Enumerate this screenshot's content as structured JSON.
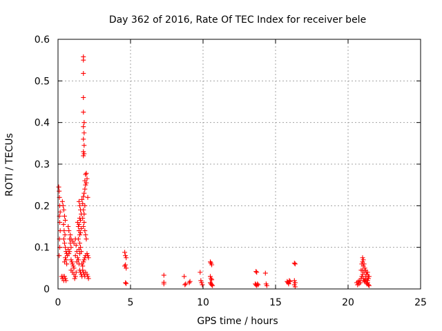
{
  "chart_data": {
    "type": "scatter",
    "title": "Day 362 of 2016, Rate Of TEC Index for receiver bele",
    "xlabel": "GPS time / hours",
    "ylabel": "ROTI / TECUs",
    "xlim": [
      0,
      25
    ],
    "ylim": [
      0,
      0.6
    ],
    "grid": true,
    "x_ticks": [
      0,
      5,
      10,
      15,
      20,
      25
    ],
    "x_tick_labels": [
      "0",
      "5",
      "10",
      "15",
      "20",
      "25"
    ],
    "y_ticks": [
      0,
      0.1,
      0.2,
      0.3,
      0.4,
      0.5,
      0.6
    ],
    "y_tick_labels": [
      "0",
      "0.1",
      "0.2",
      "0.3",
      "0.4",
      "0.5",
      "0.6"
    ],
    "marker": "+",
    "color": "#ff0000",
    "series": [
      {
        "name": "ROTI",
        "points": [
          [
            0.05,
            0.245
          ],
          [
            0.08,
            0.235
          ],
          [
            0.1,
            0.22
          ],
          [
            0.12,
            0.2
          ],
          [
            0.15,
            0.185
          ],
          [
            0.1,
            0.175
          ],
          [
            0.12,
            0.16
          ],
          [
            0.15,
            0.14
          ],
          [
            0.1,
            0.12
          ],
          [
            0.12,
            0.1
          ],
          [
            0.08,
            0.08
          ],
          [
            0.25,
            0.03
          ],
          [
            0.3,
            0.025
          ],
          [
            0.35,
            0.03
          ],
          [
            0.4,
            0.02
          ],
          [
            0.45,
            0.03
          ],
          [
            0.5,
            0.025
          ],
          [
            0.55,
            0.02
          ],
          [
            0.3,
            0.21
          ],
          [
            0.35,
            0.2
          ],
          [
            0.4,
            0.19
          ],
          [
            0.45,
            0.175
          ],
          [
            0.5,
            0.165
          ],
          [
            0.38,
            0.155
          ],
          [
            0.42,
            0.14
          ],
          [
            0.48,
            0.13
          ],
          [
            0.4,
            0.12
          ],
          [
            0.45,
            0.11
          ],
          [
            0.5,
            0.1
          ],
          [
            0.55,
            0.09
          ],
          [
            0.6,
            0.085
          ],
          [
            0.65,
            0.08
          ],
          [
            0.5,
            0.075
          ],
          [
            0.55,
            0.07
          ],
          [
            0.45,
            0.065
          ],
          [
            0.6,
            0.06
          ],
          [
            0.7,
            0.15
          ],
          [
            0.75,
            0.14
          ],
          [
            0.8,
            0.12
          ],
          [
            0.85,
            0.11
          ],
          [
            0.9,
            0.1
          ],
          [
            0.7,
            0.095
          ],
          [
            0.8,
            0.09
          ],
          [
            0.75,
            0.085
          ],
          [
            0.9,
            0.07
          ],
          [
            0.95,
            0.065
          ],
          [
            1.0,
            0.06
          ],
          [
            1.05,
            0.055
          ],
          [
            1.1,
            0.05
          ],
          [
            0.9,
            0.045
          ],
          [
            1.0,
            0.04
          ],
          [
            1.1,
            0.035
          ],
          [
            1.2,
            0.03
          ],
          [
            1.15,
            0.025
          ],
          [
            1.25,
            0.04
          ],
          [
            0.85,
            0.13
          ],
          [
            0.9,
            0.12
          ],
          [
            1.0,
            0.115
          ],
          [
            1.1,
            0.11
          ],
          [
            1.2,
            0.12
          ],
          [
            1.25,
            0.105
          ],
          [
            1.3,
            0.09
          ],
          [
            1.2,
            0.08
          ],
          [
            1.35,
            0.075
          ],
          [
            1.4,
            0.07
          ],
          [
            1.3,
            0.065
          ],
          [
            1.45,
            0.06
          ],
          [
            1.35,
            0.16
          ],
          [
            1.4,
            0.15
          ],
          [
            1.45,
            0.14
          ],
          [
            1.5,
            0.13
          ],
          [
            1.4,
            0.12
          ],
          [
            1.5,
            0.11
          ],
          [
            1.55,
            0.1
          ],
          [
            1.45,
            0.095
          ],
          [
            1.6,
            0.09
          ],
          [
            1.5,
            0.085
          ],
          [
            1.45,
            0.21
          ],
          [
            1.5,
            0.2
          ],
          [
            1.55,
            0.19
          ],
          [
            1.6,
            0.18
          ],
          [
            1.5,
            0.17
          ],
          [
            1.55,
            0.165
          ],
          [
            1.45,
            0.155
          ],
          [
            1.6,
            0.145
          ],
          [
            1.55,
            0.135
          ],
          [
            1.5,
            0.045
          ],
          [
            1.55,
            0.04
          ],
          [
            1.6,
            0.035
          ],
          [
            1.65,
            0.03
          ],
          [
            1.7,
            0.045
          ],
          [
            1.75,
            0.04
          ],
          [
            1.8,
            0.035
          ],
          [
            1.85,
            0.03
          ],
          [
            1.9,
            0.04
          ],
          [
            2.0,
            0.035
          ],
          [
            2.05,
            0.03
          ],
          [
            2.1,
            0.025
          ],
          [
            1.65,
            0.215
          ],
          [
            1.7,
            0.205
          ],
          [
            1.75,
            0.19
          ],
          [
            1.8,
            0.18
          ],
          [
            1.85,
            0.2
          ],
          [
            1.7,
            0.17
          ],
          [
            1.8,
            0.16
          ],
          [
            1.75,
            0.15
          ],
          [
            1.85,
            0.14
          ],
          [
            1.9,
            0.13
          ],
          [
            1.95,
            0.12
          ],
          [
            1.65,
            0.06
          ],
          [
            1.7,
            0.055
          ],
          [
            1.75,
            0.065
          ],
          [
            1.8,
            0.07
          ],
          [
            1.85,
            0.075
          ],
          [
            1.9,
            0.08
          ],
          [
            2.0,
            0.085
          ],
          [
            2.05,
            0.08
          ],
          [
            2.1,
            0.075
          ],
          [
            1.75,
            0.222
          ],
          [
            1.8,
            0.23
          ],
          [
            1.85,
            0.24
          ],
          [
            1.9,
            0.25
          ],
          [
            1.95,
            0.255
          ],
          [
            1.85,
            0.26
          ],
          [
            1.9,
            0.275
          ],
          [
            1.95,
            0.278
          ],
          [
            2.0,
            0.265
          ],
          [
            2.05,
            0.22
          ],
          [
            1.75,
            0.32
          ],
          [
            1.8,
            0.325
          ],
          [
            1.75,
            0.33
          ],
          [
            1.8,
            0.345
          ],
          [
            1.75,
            0.36
          ],
          [
            1.8,
            0.375
          ],
          [
            1.75,
            0.39
          ],
          [
            1.8,
            0.4
          ],
          [
            1.75,
            0.425
          ],
          [
            1.75,
            0.46
          ],
          [
            1.75,
            0.518
          ],
          [
            1.75,
            0.55
          ],
          [
            1.75,
            0.558
          ],
          [
            4.6,
            0.088
          ],
          [
            4.65,
            0.08
          ],
          [
            4.7,
            0.075
          ],
          [
            4.65,
            0.058
          ],
          [
            4.6,
            0.055
          ],
          [
            4.7,
            0.05
          ],
          [
            4.65,
            0.015
          ],
          [
            4.7,
            0.013
          ],
          [
            7.3,
            0.033
          ],
          [
            7.3,
            0.016
          ],
          [
            7.3,
            0.012
          ],
          [
            8.7,
            0.03
          ],
          [
            8.75,
            0.01
          ],
          [
            8.8,
            0.012
          ],
          [
            9.05,
            0.015
          ],
          [
            9.1,
            0.018
          ],
          [
            9.8,
            0.04
          ],
          [
            9.85,
            0.02
          ],
          [
            9.9,
            0.015
          ],
          [
            9.95,
            0.01
          ],
          [
            10.5,
            0.065
          ],
          [
            10.55,
            0.062
          ],
          [
            10.6,
            0.058
          ],
          [
            10.5,
            0.03
          ],
          [
            10.55,
            0.025
          ],
          [
            10.6,
            0.022
          ],
          [
            10.5,
            0.015
          ],
          [
            10.55,
            0.012
          ],
          [
            10.6,
            0.01
          ],
          [
            10.65,
            0.008
          ],
          [
            13.6,
            0.012
          ],
          [
            13.65,
            0.01
          ],
          [
            13.7,
            0.008
          ],
          [
            13.75,
            0.012
          ],
          [
            13.8,
            0.01
          ],
          [
            13.65,
            0.042
          ],
          [
            13.7,
            0.04
          ],
          [
            14.3,
            0.038
          ],
          [
            14.35,
            0.012
          ],
          [
            14.4,
            0.008
          ],
          [
            15.8,
            0.018
          ],
          [
            15.85,
            0.016
          ],
          [
            15.9,
            0.014
          ],
          [
            15.95,
            0.02
          ],
          [
            16.0,
            0.018
          ],
          [
            15.9,
            0.012
          ],
          [
            16.3,
            0.062
          ],
          [
            16.35,
            0.06
          ],
          [
            16.3,
            0.02
          ],
          [
            16.35,
            0.015
          ],
          [
            16.3,
            0.01
          ],
          [
            16.35,
            0.005
          ],
          [
            20.6,
            0.015
          ],
          [
            20.65,
            0.01
          ],
          [
            20.7,
            0.018
          ],
          [
            20.75,
            0.012
          ],
          [
            20.8,
            0.02
          ],
          [
            20.85,
            0.015
          ],
          [
            20.9,
            0.025
          ],
          [
            20.95,
            0.06
          ],
          [
            21.0,
            0.075
          ],
          [
            21.05,
            0.07
          ],
          [
            21.0,
            0.065
          ],
          [
            21.05,
            0.055
          ],
          [
            21.1,
            0.06
          ],
          [
            21.15,
            0.05
          ],
          [
            21.2,
            0.045
          ],
          [
            21.25,
            0.04
          ],
          [
            21.3,
            0.035
          ],
          [
            21.35,
            0.04
          ],
          [
            21.4,
            0.03
          ],
          [
            20.95,
            0.03
          ],
          [
            21.0,
            0.035
          ],
          [
            21.05,
            0.025
          ],
          [
            21.1,
            0.02
          ],
          [
            21.15,
            0.018
          ],
          [
            21.2,
            0.022
          ],
          [
            21.25,
            0.015
          ],
          [
            21.3,
            0.012
          ],
          [
            21.35,
            0.015
          ],
          [
            21.4,
            0.01
          ],
          [
            21.45,
            0.008
          ],
          [
            20.9,
            0.045
          ],
          [
            21.0,
            0.045
          ],
          [
            21.1,
            0.04
          ],
          [
            21.2,
            0.03
          ],
          [
            21.3,
            0.025
          ],
          [
            21.35,
            0.02
          ],
          [
            21.4,
            0.025
          ],
          [
            21.45,
            0.03
          ]
        ]
      }
    ]
  }
}
